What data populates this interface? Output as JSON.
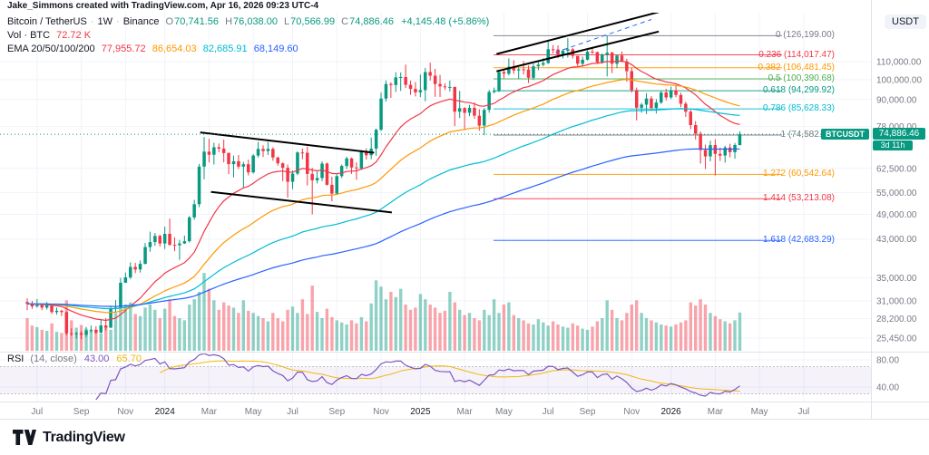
{
  "attribution": "Jake_Simmons created with TradingView.com, Apr 16, 2026 09:23 UTC-4",
  "ui": {
    "dot": "·"
  },
  "symbol_line": {
    "title": "Bitcoin / TetherUS",
    "interval": "1W",
    "exchange": "Binance",
    "o_label": "O",
    "o": "70,741.56",
    "h_label": "H",
    "h": "76,038.00",
    "l_label": "L",
    "l": "70,566.99",
    "c_label": "C",
    "c": "74,886.46",
    "change": "+4,145.48 (+5.86%)"
  },
  "volume_line": {
    "label": "Vol · BTC",
    "value": "72.72 K"
  },
  "ema_line": {
    "label": "EMA 20/50/100/200",
    "values": [
      "77,955.72",
      "86,654.03",
      "82,685.91",
      "68,149.60"
    ]
  },
  "rsi_line": {
    "label": "RSI",
    "params": "(14, close)",
    "value": "43.00",
    "ma_value": "65.70"
  },
  "axis": {
    "currency": "USDT",
    "price_ticks": [
      [
        110000,
        "110,000.00"
      ],
      [
        100000,
        "100,000.00"
      ],
      [
        90000,
        "90,000.00"
      ],
      [
        78000,
        "78,000.00"
      ],
      [
        62500,
        "62,500.00"
      ],
      [
        55000,
        "55,000.00"
      ],
      [
        49000,
        "49,000.00"
      ],
      [
        43000,
        "43,000.00"
      ],
      [
        35000,
        "35,000.00"
      ],
      [
        31000,
        "31,000.00"
      ],
      [
        28200,
        "28,200.00"
      ],
      [
        25450,
        "25,450.00"
      ]
    ],
    "rsi_ticks": [
      [
        80,
        "80.00"
      ],
      [
        40,
        "40.00"
      ]
    ],
    "price_badge": "74,886.46",
    "countdown": "3d 11h",
    "symbol_badge": "BTCUSDT"
  },
  "footer": {
    "brand": "TradingView"
  },
  "chart_data": {
    "type": "candlestick",
    "title": "Bitcoin / TetherUS Weekly on Binance with Volume, EMA 20/50/100/200, Fib Retracement and RSI(14)",
    "x_unit": "week",
    "price_unit": "thousand USDT",
    "price_scale": "log",
    "first_open": 30.8,
    "price_line": 74886.46,
    "candles": [
      [
        30.5,
        31.4,
        29.5
      ],
      [
        30.1,
        31.0,
        29.7
      ],
      [
        30.3,
        31.3,
        29.9
      ],
      [
        29.9,
        30.5,
        29.5
      ],
      [
        30.3,
        30.8,
        29.6
      ],
      [
        29.2,
        30.4,
        28.9
      ],
      [
        29.4,
        29.9,
        28.8
      ],
      [
        29.2,
        29.6,
        28.6
      ],
      [
        26.1,
        29.3,
        25.8
      ],
      [
        26.0,
        26.8,
        25.7
      ],
      [
        26.1,
        26.3,
        25.4
      ],
      [
        25.9,
        26.4,
        25.3
      ],
      [
        26.5,
        27.0,
        25.6
      ],
      [
        26.6,
        27.2,
        26.2
      ],
      [
        26.2,
        27.1,
        26.0
      ],
      [
        27.2,
        28.1,
        26.1
      ],
      [
        26.9,
        28.3,
        26.5
      ],
      [
        29.7,
        30.2,
        26.8
      ],
      [
        29.9,
        31.1,
        29.2
      ],
      [
        34.1,
        35.0,
        29.8
      ],
      [
        35.1,
        36.0,
        34.1
      ],
      [
        37.1,
        38.0,
        34.8
      ],
      [
        36.6,
        37.9,
        35.9
      ],
      [
        37.7,
        38.4,
        36.0
      ],
      [
        41.2,
        42.1,
        37.6
      ],
      [
        42.3,
        44.7,
        40.2
      ],
      [
        43.7,
        44.4,
        41.5
      ],
      [
        42.0,
        44.0,
        41.3
      ],
      [
        44.2,
        45.9,
        40.8
      ],
      [
        41.7,
        47.9,
        41.5
      ],
      [
        41.6,
        43.4,
        40.3
      ],
      [
        42.0,
        42.8,
        38.5
      ],
      [
        42.5,
        43.8,
        41.9
      ],
      [
        48.2,
        48.6,
        42.2
      ],
      [
        51.7,
        52.9,
        47.6
      ],
      [
        63.1,
        64.0,
        50.9
      ],
      [
        68.3,
        73.8,
        59.0
      ],
      [
        67.2,
        73.1,
        64.5
      ],
      [
        69.9,
        71.6,
        63.8
      ],
      [
        69.4,
        71.3,
        68.1
      ],
      [
        67.8,
        72.8,
        64.5
      ],
      [
        63.9,
        68.0,
        60.6
      ],
      [
        64.9,
        66.9,
        59.6
      ],
      [
        63.1,
        67.1,
        62.3
      ],
      [
        63.9,
        64.7,
        56.5
      ],
      [
        61.2,
        65.5,
        60.2
      ],
      [
        66.9,
        67.4,
        60.8
      ],
      [
        69.3,
        71.9,
        66.2
      ],
      [
        68.5,
        70.6,
        66.4
      ],
      [
        69.3,
        71.9,
        67.1
      ],
      [
        66.2,
        69.9,
        65.1
      ],
      [
        64.2,
        66.5,
        63.4
      ],
      [
        62.7,
        64.5,
        58.4
      ],
      [
        58.2,
        63.8,
        53.5
      ],
      [
        60.8,
        61.8,
        56.0
      ],
      [
        68.0,
        68.4,
        60.3
      ],
      [
        67.9,
        69.4,
        65.6
      ],
      [
        60.7,
        70.1,
        57.1
      ],
      [
        58.7,
        62.7,
        49.0
      ],
      [
        59.4,
        61.8,
        57.7
      ],
      [
        64.1,
        64.9,
        58.4
      ],
      [
        57.3,
        64.5,
        57.1
      ],
      [
        54.7,
        59.8,
        52.5
      ],
      [
        60.0,
        60.6,
        54.3
      ],
      [
        63.3,
        63.8,
        59.4
      ],
      [
        65.9,
        66.5,
        62.3
      ],
      [
        62.8,
        66.2,
        60.7
      ],
      [
        62.5,
        64.5,
        58.9
      ],
      [
        68.4,
        68.9,
        62.0
      ],
      [
        67.0,
        69.5,
        65.5
      ],
      [
        69.4,
        73.6,
        65.6
      ],
      [
        76.7,
        77.2,
        66.8
      ],
      [
        90.5,
        93.4,
        76.2
      ],
      [
        97.7,
        99.6,
        89.1
      ],
      [
        97.2,
        98.6,
        90.8
      ],
      [
        101.2,
        104.0,
        93.7
      ],
      [
        101.4,
        103.9,
        94.2
      ],
      [
        97.3,
        108.3,
        95.7
      ],
      [
        95.2,
        99.5,
        92.3
      ],
      [
        93.5,
        98.8,
        91.5
      ],
      [
        94.6,
        102.7,
        91.2
      ],
      [
        104.1,
        106.4,
        89.2
      ],
      [
        102.1,
        109.4,
        99.5
      ],
      [
        97.7,
        105.9,
        91.3
      ],
      [
        96.5,
        102.5,
        91.2
      ],
      [
        96.1,
        98.1,
        94.7
      ],
      [
        96.2,
        99.5,
        93.9
      ],
      [
        84.4,
        96.3,
        78.2
      ],
      [
        86.0,
        94.2,
        81.6
      ],
      [
        83.9,
        86.5,
        76.6
      ],
      [
        86.1,
        87.5,
        82.4
      ],
      [
        82.6,
        88.5,
        81.3
      ],
      [
        78.4,
        85.5,
        76.3
      ],
      [
        85.2,
        86.1,
        74.5
      ],
      [
        93.7,
        94.7,
        83.9
      ],
      [
        94.3,
        95.9,
        92.9
      ],
      [
        104.1,
        104.3,
        93.6
      ],
      [
        103.2,
        105.8,
        100.7
      ],
      [
        107.1,
        111.9,
        102.3
      ],
      [
        105.0,
        110.8,
        103.1
      ],
      [
        105.6,
        106.8,
        100.4
      ],
      [
        105.5,
        110.3,
        102.7
      ],
      [
        101.0,
        107.8,
        98.2
      ],
      [
        107.3,
        108.8,
        99.8
      ],
      [
        108.2,
        110.6,
        105.1
      ],
      [
        109.2,
        112.0,
        107.3
      ],
      [
        117.5,
        123.1,
        108.7
      ],
      [
        117.3,
        120.1,
        114.8
      ],
      [
        114.2,
        119.8,
        112.0
      ],
      [
        116.5,
        117.6,
        111.9
      ],
      [
        117.4,
        124.5,
        112.4
      ],
      [
        113.4,
        118.3,
        111.8
      ],
      [
        108.8,
        113.5,
        107.3
      ],
      [
        111.1,
        113.0,
        107.2
      ],
      [
        115.9,
        116.9,
        110.7
      ],
      [
        115.7,
        118.0,
        114.6
      ],
      [
        109.6,
        116.0,
        108.7
      ],
      [
        114.2,
        114.9,
        108.8
      ],
      [
        115.3,
        126.2,
        101.7
      ],
      [
        108.8,
        116.0,
        103.5
      ],
      [
        113.6,
        114.1,
        106.3
      ],
      [
        110.1,
        116.1,
        109.6
      ],
      [
        104.6,
        111.7,
        98.9
      ],
      [
        94.6,
        106.5,
        93.4
      ],
      [
        86.2,
        95.9,
        80.6
      ],
      [
        87.6,
        88.4,
        83.9
      ],
      [
        90.5,
        93.1,
        83.3
      ],
      [
        86.1,
        91.6,
        85.3
      ],
      [
        88.6,
        90.2,
        83.6
      ],
      [
        93.4,
        94.1,
        87.9
      ],
      [
        91.0,
        95.3,
        89.6
      ],
      [
        94.5,
        96.4,
        90.2
      ],
      [
        92.2,
        97.0,
        91.1
      ],
      [
        88.0,
        93.3,
        86.4
      ],
      [
        84.4,
        89.0,
        82.1
      ],
      [
        78.6,
        85.2,
        76.9
      ],
      [
        75.1,
        80.3,
        72.8
      ],
      [
        68.9,
        76.0,
        64.1
      ],
      [
        66.6,
        70.9,
        62.3
      ],
      [
        70.7,
        72.4,
        64.9
      ],
      [
        67.5,
        72.9,
        60.2
      ],
      [
        66.9,
        69.8,
        65.0
      ],
      [
        69.8,
        70.5,
        64.4
      ],
      [
        68.1,
        71.2,
        66.3
      ],
      [
        70.742,
        71.5,
        65.8
      ],
      [
        74.886,
        76.038,
        70.567
      ]
    ],
    "volumes_k": [
      62,
      48,
      45,
      40,
      38,
      52,
      36,
      34,
      96,
      58,
      44,
      49,
      42,
      39,
      35,
      33,
      46,
      40,
      72,
      105,
      88,
      92,
      70,
      66,
      82,
      88,
      78,
      62,
      80,
      98,
      66,
      62,
      58,
      88,
      98,
      112,
      148,
      118,
      96,
      78,
      92,
      86,
      82,
      72,
      96,
      76,
      72,
      66,
      62,
      56,
      72,
      62,
      56,
      78,
      84,
      72,
      98,
      70,
      124,
      74,
      62,
      80,
      64,
      58,
      54,
      50,
      58,
      52,
      64,
      56,
      90,
      134,
      122,
      98,
      112,
      102,
      118,
      88,
      78,
      82,
      108,
      98,
      88,
      82,
      72,
      76,
      112,
      92,
      78,
      68,
      72,
      62,
      58,
      78,
      68,
      98,
      72,
      88,
      92,
      68,
      62,
      58,
      52,
      50,
      60,
      54,
      48,
      56,
      50,
      46,
      44,
      52,
      48,
      42,
      40,
      46,
      56,
      62,
      96,
      78,
      62,
      58,
      72,
      88,
      96,
      72,
      62,
      58,
      54,
      50,
      48,
      46,
      50,
      54,
      58,
      92,
      86,
      98,
      88,
      72,
      66,
      60,
      56,
      52,
      58,
      72.72
    ],
    "ema_periods": [
      20,
      50,
      100,
      200
    ],
    "ema_colors": [
      "#f23645",
      "#ff9800",
      "#00bcd4",
      "#2962ff"
    ],
    "rsi": {
      "period": 14,
      "source": "close",
      "overbought": 70,
      "oversold": 30,
      "line_color": "#7e57c2",
      "ma_color": "#f0b90b"
    },
    "fib": {
      "levels": [
        {
          "level": "0",
          "value": 126199.0,
          "text": "126,199.00",
          "color": "#787b86"
        },
        {
          "level": "0.236",
          "value": 114017.47,
          "text": "114,017.47",
          "color": "#f23645"
        },
        {
          "level": "0.382",
          "value": 106481.45,
          "text": "106,481.45",
          "color": "#ff9800"
        },
        {
          "level": "0.5",
          "value": 100390.68,
          "text": "100,390.68",
          "color": "#4caf50"
        },
        {
          "level": "0.618",
          "value": 94299.92,
          "text": "94,299.92",
          "color": "#089981"
        },
        {
          "level": "0.786",
          "value": 85628.33,
          "text": "85,628.33",
          "color": "#00bcd4"
        },
        {
          "level": "1",
          "value": 74582.37,
          "text": "74,582.37",
          "color": "#787b86"
        },
        {
          "level": "1.272",
          "value": 60542.64,
          "text": "60,542.64",
          "color": "#ff9800"
        },
        {
          "level": "1.414",
          "value": 53213.08,
          "text": "53,213.08",
          "color": "#f23645"
        },
        {
          "level": "1.618",
          "value": 42683.29,
          "text": "42,683.29",
          "color": "#2962ff"
        }
      ]
    },
    "trendlines": [
      {
        "i1": 35.2,
        "p1": 75.6,
        "i2": 70.6,
        "p2": 67.9,
        "color": "#000000",
        "width": 2,
        "dash": ""
      },
      {
        "i1": 37.4,
        "p1": 55.2,
        "i2": 74.2,
        "p2": 49.5,
        "color": "#000000",
        "width": 2,
        "dash": ""
      },
      {
        "i1": 95.5,
        "p1": 114.5,
        "i2": 128.5,
        "p2": 143.0,
        "color": "#000000",
        "width": 2,
        "dash": ""
      },
      {
        "i1": 95.5,
        "p1": 104.5,
        "i2": 128.5,
        "p2": 129.0,
        "color": "#000000",
        "width": 2,
        "dash": ""
      },
      {
        "i1": 107.5,
        "p1": 115.5,
        "i2": 127.0,
        "p2": 137.5,
        "color": "#2962ff",
        "width": 1,
        "dash": "5,4"
      }
    ],
    "time_labels": [
      [
        2,
        "Jul"
      ],
      [
        11,
        "Sep"
      ],
      [
        20,
        "Nov"
      ],
      [
        28,
        "2024"
      ],
      [
        37,
        "Mar"
      ],
      [
        46,
        "May"
      ],
      [
        54,
        "Jul"
      ],
      [
        63,
        "Sep"
      ],
      [
        72,
        "Nov"
      ],
      [
        80,
        "2025"
      ],
      [
        89,
        "Mar"
      ],
      [
        97,
        "May"
      ],
      [
        106,
        "Jul"
      ],
      [
        114,
        "Sep"
      ],
      [
        123,
        "Nov"
      ],
      [
        131,
        "2026"
      ],
      [
        140,
        "Mar"
      ],
      [
        149,
        "May"
      ],
      [
        158,
        "Jul"
      ]
    ]
  }
}
